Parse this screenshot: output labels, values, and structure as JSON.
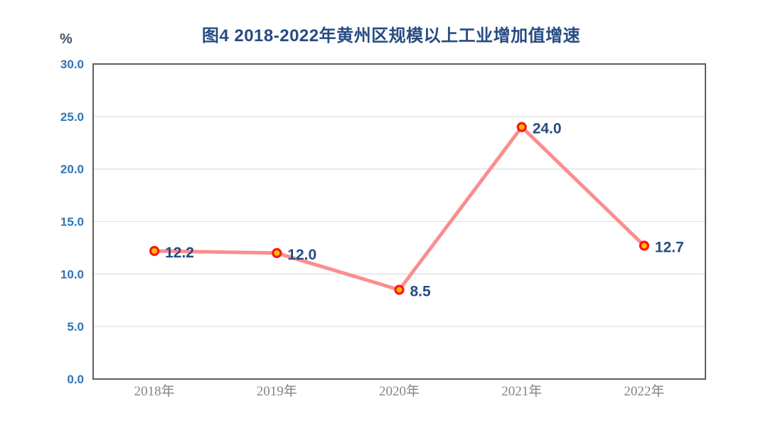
{
  "chart_data": {
    "type": "line",
    "title": "图4  2018-2022年黄州区规模以上工业增加值增速",
    "unit_label": "%",
    "categories": [
      "2018年",
      "2019年",
      "2020年",
      "2021年",
      "2022年"
    ],
    "values": [
      12.2,
      12.0,
      8.5,
      24.0,
      12.7
    ],
    "data_labels": [
      "12.2",
      "12.0",
      "8.5",
      "24.0",
      "12.7"
    ],
    "y_ticks": [
      "0.0",
      "5.0",
      "10.0",
      "15.0",
      "20.0",
      "25.0",
      "30.0"
    ],
    "ylim": [
      0,
      30
    ],
    "xlabel": "",
    "ylabel": "%",
    "grid": "horizontal",
    "legend": "none",
    "colors": {
      "title": "#274C82",
      "unit_label": "#44546A",
      "axis_tick": "#2E75B6",
      "data_label": "#274C82",
      "line": "#FA8E8E",
      "marker_fill": "#FFC000",
      "marker_ring": "#FF1414",
      "x_label": "#848484",
      "gridline": "#E2E2E2",
      "plot_border": "#5E5E5E"
    }
  }
}
